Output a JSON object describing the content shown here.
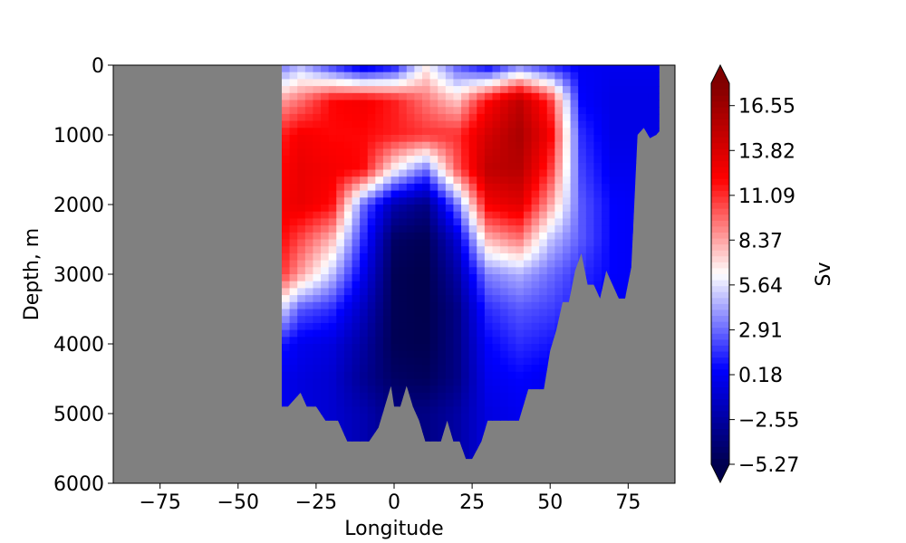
{
  "chart_data": {
    "type": "heatmap",
    "title": "",
    "xlabel": "Longitude",
    "ylabel": "Depth, m",
    "xlim": [
      -90,
      90
    ],
    "ylim": [
      6000,
      0
    ],
    "y_inverted": true,
    "x_ticks": [
      -75,
      -50,
      -25,
      0,
      25,
      50,
      75
    ],
    "x_tick_labels": [
      "−75",
      "−50",
      "−25",
      "0",
      "25",
      "50",
      "75"
    ],
    "y_ticks": [
      0,
      1000,
      2000,
      3000,
      4000,
      5000,
      6000
    ],
    "y_tick_labels": [
      "0",
      "1000",
      "2000",
      "3000",
      "4000",
      "5000",
      "6000"
    ],
    "colormap": "seismic",
    "land_color": "#808080",
    "colorbar": {
      "label": "Sv",
      "range": [
        -5.27,
        17.91
      ],
      "extend": "both",
      "ticks": [
        -5.27,
        -2.55,
        0.18,
        2.91,
        5.64,
        8.37,
        11.09,
        13.82,
        16.55
      ],
      "tick_labels": [
        "−5.27",
        "−2.55",
        "0.18",
        "2.91",
        "5.64",
        "8.37",
        "11.09",
        "13.82",
        "16.55"
      ]
    },
    "ocean_extent": {
      "lon": [
        -36,
        -36,
        -34,
        -30,
        -28,
        -25,
        -22,
        -20,
        -18,
        -15,
        -12,
        -8,
        -5,
        -3,
        -1,
        0,
        2,
        4,
        6,
        8,
        10,
        12,
        15,
        17,
        19,
        21,
        23,
        25,
        28,
        30,
        33,
        35,
        38,
        40,
        43,
        45,
        48,
        50,
        52,
        54,
        56,
        58,
        60,
        62,
        64,
        66,
        68,
        70,
        72,
        74,
        76,
        78,
        80,
        82,
        84,
        85,
        85
      ],
      "bottom_depth": [
        0,
        4900,
        4900,
        4700,
        4900,
        4900,
        5100,
        5100,
        5100,
        5400,
        5400,
        5400,
        5200,
        4900,
        4600,
        4900,
        4900,
        4600,
        4900,
        5100,
        5400,
        5400,
        5400,
        5100,
        5400,
        5400,
        5650,
        5650,
        5400,
        5100,
        5100,
        5100,
        5100,
        5100,
        4650,
        4650,
        4650,
        4100,
        3800,
        3400,
        3400,
        2950,
        2700,
        3150,
        3150,
        3350,
        2950,
        3150,
        3350,
        3350,
        2900,
        1000,
        900,
        1050,
        1000,
        950,
        0
      ]
    },
    "field_samples": {
      "lon": [
        -36,
        -30,
        -20,
        -10,
        0,
        10,
        20,
        30,
        40,
        50,
        60,
        70,
        85
      ],
      "depth": [
        0,
        500,
        1000,
        1500,
        2000,
        2500,
        3000,
        3500,
        4000,
        4500,
        5000
      ],
      "values_sv": [
        [
          2.9,
          4.5,
          1.5,
          -1.0,
          0.5,
          6.5,
          2.5,
          0.0,
          3.0,
          1.0,
          0.2,
          0.0,
          0.0
        ],
        [
          8.5,
          9.5,
          12.0,
          12.5,
          11.5,
          9.5,
          7.5,
          12.0,
          15.0,
          11.0,
          0.5,
          -0.3,
          -0.3
        ],
        [
          11.5,
          12.5,
          12.0,
          12.0,
          11.5,
          11.0,
          11.0,
          14.0,
          16.0,
          12.5,
          1.5,
          -0.3,
          -0.3
        ],
        [
          12.0,
          13.0,
          12.5,
          12.0,
          6.5,
          3.0,
          10.0,
          15.0,
          15.5,
          11.0,
          2.0,
          0.0,
          0.0
        ],
        [
          12.5,
          13.0,
          12.0,
          3.0,
          -2.0,
          -3.5,
          3.0,
          12.5,
          13.5,
          8.5,
          2.5,
          0.5,
          0.0
        ],
        [
          12.0,
          10.5,
          8.0,
          1.5,
          -4.5,
          -5.0,
          -1.0,
          8.0,
          9.5,
          5.0,
          2.5,
          0.5,
          0.0
        ],
        [
          11.0,
          8.5,
          5.0,
          0.0,
          -5.0,
          -5.3,
          -2.5,
          3.5,
          4.5,
          3.0,
          1.5,
          0.5,
          0.0
        ],
        [
          5.5,
          2.5,
          1.5,
          -1.5,
          -5.0,
          -5.3,
          -3.5,
          1.5,
          2.5,
          2.0,
          1.0,
          0.0,
          0.0
        ],
        [
          1.0,
          0.0,
          -0.5,
          -2.5,
          -5.0,
          -5.2,
          -3.5,
          0.5,
          1.5,
          1.0,
          0.0,
          0.0,
          0.0
        ],
        [
          0.0,
          -0.5,
          -1.0,
          -3.0,
          -4.5,
          -4.8,
          -3.5,
          0.0,
          0.5,
          0.0,
          0.0,
          0.0,
          0.0
        ],
        [
          0.0,
          -0.5,
          -1.0,
          -2.0,
          -3.5,
          -3.5,
          -2.5,
          -0.5,
          0.0,
          0.0,
          0.0,
          0.0,
          0.0
        ]
      ]
    }
  }
}
